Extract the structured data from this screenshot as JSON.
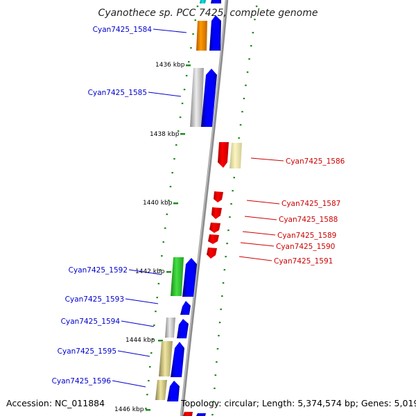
{
  "title": "Cyanothece sp. PCC 7425, complete genome",
  "footer": {
    "accession": "Accession: NC_011884",
    "summary": "Topology: circular; Length: 5,374,574 bp; Genes: 5,019"
  },
  "colors": {
    "forward_label": "#0000cc",
    "reverse_label": "#cc0000",
    "tick": "#228B22",
    "backbone": "#8c8c8c"
  },
  "ticks": [
    {
      "label": "1436 kbp"
    },
    {
      "label": "1438 kbp"
    },
    {
      "label": "1440 kbp"
    },
    {
      "label": "1442 kbp"
    },
    {
      "label": "1444 kbp"
    },
    {
      "label": "1446 kbp"
    }
  ],
  "genes": [
    {
      "name": "Cyan7425_1584",
      "strand": "forward",
      "feature_color": "orange"
    },
    {
      "name": "Cyan7425_1585",
      "strand": "forward",
      "feature_color": "grey"
    },
    {
      "name": "Cyan7425_1586",
      "strand": "reverse",
      "feature_color": "khaki"
    },
    {
      "name": "Cyan7425_1587",
      "strand": "reverse",
      "feature_color": "none"
    },
    {
      "name": "Cyan7425_1588",
      "strand": "reverse",
      "feature_color": "none"
    },
    {
      "name": "Cyan7425_1589",
      "strand": "reverse",
      "feature_color": "none"
    },
    {
      "name": "Cyan7425_1590",
      "strand": "reverse",
      "feature_color": "none"
    },
    {
      "name": "Cyan7425_1591",
      "strand": "reverse",
      "feature_color": "none"
    },
    {
      "name": "Cyan7425_1592",
      "strand": "forward",
      "feature_color": "green"
    },
    {
      "name": "Cyan7425_1593",
      "strand": "forward",
      "feature_color": "none"
    },
    {
      "name": "Cyan7425_1594",
      "strand": "forward",
      "feature_color": "grey"
    },
    {
      "name": "Cyan7425_1595",
      "strand": "forward",
      "feature_color": "khaki"
    },
    {
      "name": "Cyan7425_1596",
      "strand": "forward",
      "feature_color": "khaki"
    }
  ]
}
